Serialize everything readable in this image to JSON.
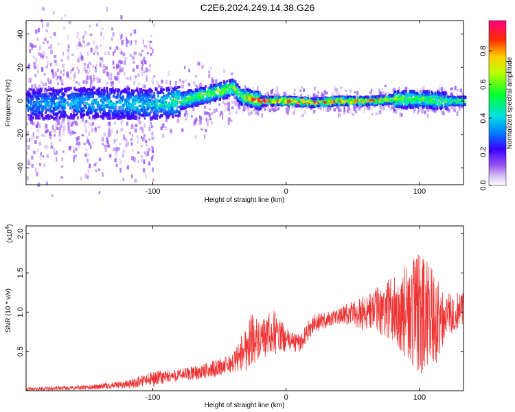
{
  "title": "C2E6.2024.249.14.38.G26",
  "chart_data": [
    {
      "type": "heatmap",
      "title": "C2E6.2024.249.14.38.G26",
      "xlabel": "Height of straight line (km)",
      "ylabel": "Frequency (Hz)",
      "xlim": [
        -195,
        133
      ],
      "ylim": [
        -50,
        48
      ],
      "xticks": [
        -100,
        0,
        100
      ],
      "yticks": [
        -40,
        -20,
        0,
        20,
        40
      ],
      "colorbar": {
        "label": "Normalized spectral amplitude",
        "range": [
          0,
          0.98
        ],
        "ticks": [
          "0.0",
          "0.2",
          "0.4",
          "0.6",
          "0.8"
        ]
      },
      "ridge": {
        "description_points_x": [
          -195,
          -150,
          -100,
          -80,
          -60,
          -40,
          -35,
          -20,
          0,
          20,
          40,
          60,
          80,
          100,
          120,
          133
        ],
        "center_freq_hz": [
          -2,
          -1,
          -2,
          0,
          4,
          8,
          3,
          0,
          0,
          -1,
          0,
          0,
          1,
          1,
          0,
          0
        ],
        "peak_amplitude": [
          0.2,
          0.25,
          0.3,
          0.45,
          0.55,
          0.6,
          0.55,
          0.85,
          0.95,
          0.9,
          0.85,
          0.8,
          0.6,
          0.5,
          0.5,
          0.6
        ]
      }
    },
    {
      "type": "line",
      "xlabel": "Height of straight line (km)",
      "ylabel": "SNR (10 * v/v)",
      "scale_label": "(x10",
      "scale_exp": "4",
      "xlim": [
        -195,
        133
      ],
      "ylim": [
        0,
        2.1
      ],
      "xticks": [
        -100,
        0,
        100
      ],
      "yticks": [
        "0.5",
        "1.0",
        "1.5",
        "2.0"
      ],
      "color": "#ee3333",
      "envelope": {
        "x": [
          -195,
          -150,
          -120,
          -100,
          -80,
          -60,
          -40,
          -30,
          -25,
          -20,
          -10,
          0,
          10,
          20,
          40,
          60,
          80,
          90,
          100,
          110,
          120,
          133
        ],
        "mean": [
          0.02,
          0.04,
          0.08,
          0.15,
          0.2,
          0.25,
          0.35,
          0.55,
          0.7,
          0.6,
          0.75,
          0.65,
          0.6,
          0.85,
          0.95,
          1.0,
          1.05,
          1.0,
          0.95,
          0.9,
          0.95,
          1.05
        ],
        "amplitude": [
          0.02,
          0.03,
          0.05,
          0.1,
          0.08,
          0.1,
          0.12,
          0.3,
          0.35,
          0.25,
          0.3,
          0.15,
          0.12,
          0.12,
          0.1,
          0.25,
          0.4,
          0.6,
          0.8,
          0.7,
          0.3,
          0.2
        ]
      }
    }
  ]
}
